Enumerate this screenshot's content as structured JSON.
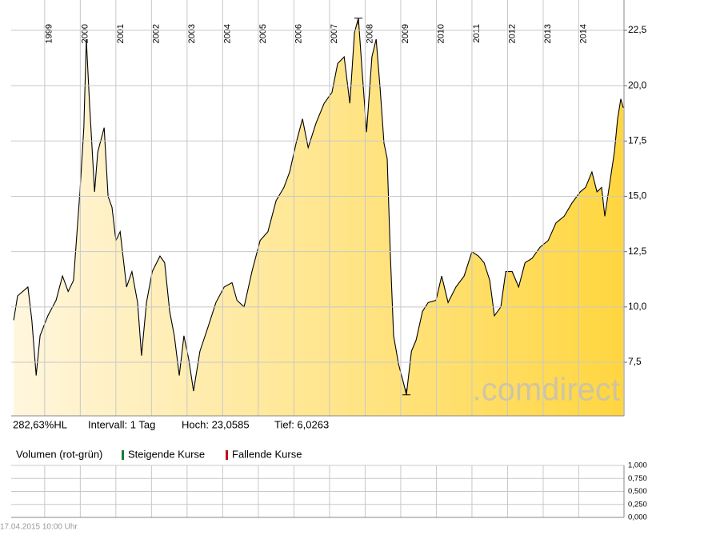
{
  "chart_data": [
    {
      "type": "area",
      "x": [
        1998.13,
        1998.24,
        1998.53,
        1998.64,
        1998.76,
        1998.87,
        1999.09,
        1999.32,
        1999.5,
        1999.66,
        1999.81,
        1999.99,
        2000.1,
        2000.17,
        2000.26,
        2000.4,
        2000.49,
        2000.67,
        2000.78,
        2000.89,
        2001.0,
        2001.12,
        2001.3,
        2001.45,
        2001.61,
        2001.72,
        2001.86,
        2002.02,
        2002.24,
        2002.37,
        2002.51,
        2002.64,
        2002.78,
        2002.91,
        2003.05,
        2003.18,
        2003.36,
        2003.59,
        2003.81,
        2004.04,
        2004.26,
        2004.4,
        2004.6,
        2004.82,
        2005.05,
        2005.27,
        2005.5,
        2005.72,
        2005.88,
        2006.06,
        2006.24,
        2006.4,
        2006.62,
        2006.85,
        2007.07,
        2007.23,
        2007.41,
        2007.57,
        2007.7,
        2007.81,
        2007.9,
        2008.04,
        2008.19,
        2008.31,
        2008.42,
        2008.53,
        2008.62,
        2008.71,
        2008.8,
        2008.94,
        2009.09,
        2009.16,
        2009.3,
        2009.43,
        2009.61,
        2009.77,
        2009.99,
        2010.15,
        2010.33,
        2010.55,
        2010.78,
        2011.0,
        2011.18,
        2011.34,
        2011.5,
        2011.63,
        2011.81,
        2011.95,
        2012.13,
        2012.31,
        2012.49,
        2012.69,
        2012.91,
        2013.14,
        2013.36,
        2013.59,
        2013.81,
        2014.04,
        2014.19,
        2014.37,
        2014.51,
        2014.64,
        2014.73,
        2014.87,
        2015.0,
        2015.09,
        2015.18,
        2015.25
      ],
      "values": [
        9.4,
        10.5,
        10.9,
        9.4,
        6.9,
        8.7,
        9.6,
        10.3,
        11.4,
        10.7,
        11.2,
        15.2,
        18.1,
        22.1,
        19.2,
        15.2,
        17.0,
        18.1,
        15.0,
        14.5,
        13.0,
        13.4,
        10.9,
        11.6,
        10.2,
        7.8,
        10.2,
        11.6,
        12.3,
        12.0,
        9.8,
        8.7,
        6.9,
        8.7,
        7.6,
        6.2,
        8.0,
        9.1,
        10.2,
        10.9,
        11.1,
        10.3,
        10.0,
        11.6,
        13.0,
        13.4,
        14.8,
        15.4,
        16.1,
        17.4,
        18.5,
        17.2,
        18.3,
        19.2,
        19.7,
        21.0,
        21.3,
        19.2,
        22.4,
        23.05,
        21.0,
        17.9,
        21.3,
        22.1,
        19.9,
        17.4,
        16.7,
        12.3,
        8.7,
        7.4,
        6.5,
        6.03,
        8.0,
        8.5,
        9.8,
        10.2,
        10.3,
        11.4,
        10.2,
        10.9,
        11.4,
        12.5,
        12.3,
        12.0,
        11.2,
        9.6,
        10.0,
        11.6,
        11.6,
        10.9,
        12.0,
        12.2,
        12.7,
        13.0,
        13.8,
        14.1,
        14.7,
        15.2,
        15.4,
        16.1,
        15.2,
        15.4,
        14.1,
        15.6,
        17.0,
        18.5,
        19.4,
        19.0
      ],
      "line_color": "#000000",
      "fill_colors": [
        "#fff6de",
        "#ffd640"
      ],
      "xlim": [
        1998.06,
        2015.27
      ],
      "xticks": [
        1999,
        2000,
        2001,
        2002,
        2003,
        2004,
        2005,
        2006,
        2007,
        2008,
        2009,
        2010,
        2011,
        2012,
        2013,
        2014
      ],
      "ylim": [
        5.08,
        23.87
      ],
      "yticks": [
        {
          "value": 7.5,
          "label": "7,5"
        },
        {
          "value": 10,
          "label": "10,0"
        },
        {
          "value": 12.5,
          "label": "12,5"
        },
        {
          "value": 15,
          "label": "15,0"
        },
        {
          "value": 17.5,
          "label": "17,5"
        },
        {
          "value": 20,
          "label": "20,0"
        },
        {
          "value": 22.5,
          "label": "22,5"
        }
      ],
      "grid": true,
      "watermark": ".comdirect",
      "stats": [
        "282,63%HL",
        "Intervall: 1 Tag",
        "Hoch: 23,0585",
        "Tief: 6,0263"
      ]
    },
    {
      "type": "bar",
      "title": "Volumen (rot-grün)",
      "series": [
        {
          "name": "Steigende Kurse",
          "color": "#1a7a3a",
          "values": []
        },
        {
          "name": "Fallende Kurse",
          "color": "#c0101a",
          "values": []
        }
      ],
      "ylim": [
        0,
        1
      ],
      "yticks": [
        {
          "value": 0,
          "label": "0,000"
        },
        {
          "value": 0.25,
          "label": "0,250"
        },
        {
          "value": 0.5,
          "label": "0,500"
        },
        {
          "value": 0.75,
          "label": "0,750"
        },
        {
          "value": 1,
          "label": "1,000"
        }
      ],
      "grid": true
    }
  ],
  "footer": "17.04.2015 10:00 Uhr"
}
